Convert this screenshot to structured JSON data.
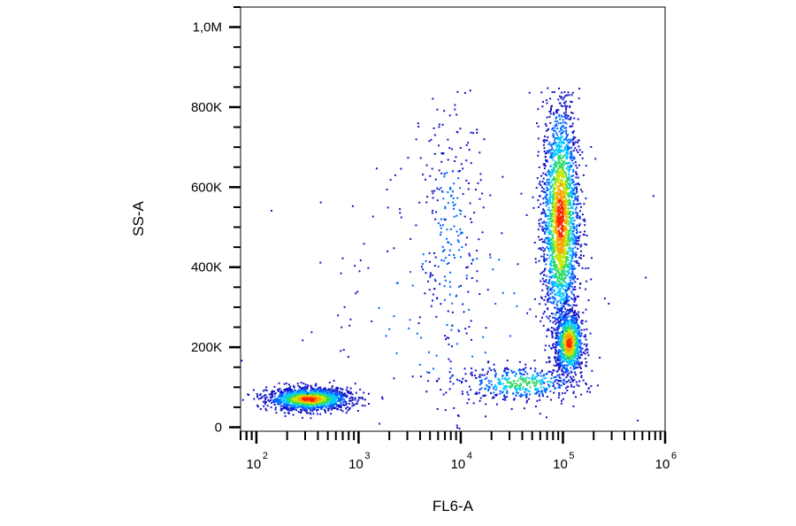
{
  "chart_data": {
    "type": "scatter",
    "subtype": "flow-cytometry-density-dot-plot",
    "title": "",
    "xlabel": "FL6-A",
    "ylabel": "SS-A",
    "x_scale": "log",
    "y_scale": "linear",
    "xlim": [
      70,
      1000000
    ],
    "ylim": [
      -10000,
      1050000
    ],
    "x_tick_labels": [
      {
        "value": 100,
        "base": "10",
        "exp": "2"
      },
      {
        "value": 1000,
        "base": "10",
        "exp": "3"
      },
      {
        "value": 10000,
        "base": "10",
        "exp": "4"
      },
      {
        "value": 100000,
        "base": "10",
        "exp": "5"
      },
      {
        "value": 1000000,
        "base": "10",
        "exp": "6"
      }
    ],
    "y_tick_labels": [
      {
        "value": 0,
        "label": "0"
      },
      {
        "value": 200000,
        "label": "200K"
      },
      {
        "value": 400000,
        "label": "400K"
      },
      {
        "value": 600000,
        "label": "600K"
      },
      {
        "value": 800000,
        "label": "800K"
      },
      {
        "value": 1000000,
        "label": "1,0M"
      }
    ],
    "y_minor_step": 50000,
    "grid": false,
    "legend": "none",
    "density_colormap": [
      "#1414c8",
      "#0064ff",
      "#00c8ff",
      "#32dc64",
      "#c8e600",
      "#ffa000",
      "#ff1e00"
    ],
    "populations": [
      {
        "center_x": 330,
        "center_y": 70000,
        "spread_log_x": 0.2,
        "spread_y": 14000,
        "events": 1500
      },
      {
        "center_x": 40000,
        "center_y": 110000,
        "spread_log_x": 0.3,
        "spread_y": 22000,
        "events": 420
      },
      {
        "center_x": 95000,
        "center_y": 520000,
        "spread_log_x": 0.09,
        "spread_y": 150000,
        "events": 2300
      },
      {
        "center_x": 115000,
        "center_y": 210000,
        "spread_log_x": 0.07,
        "spread_y": 40000,
        "events": 900
      },
      {
        "center_x": 8000,
        "center_y": 480000,
        "spread_log_x": 0.15,
        "spread_y": 200000,
        "events": 260
      },
      {
        "center_x": 8000,
        "center_y": 300000,
        "spread_log_x": 0.8,
        "spread_y": 200000,
        "events": 160
      }
    ]
  }
}
